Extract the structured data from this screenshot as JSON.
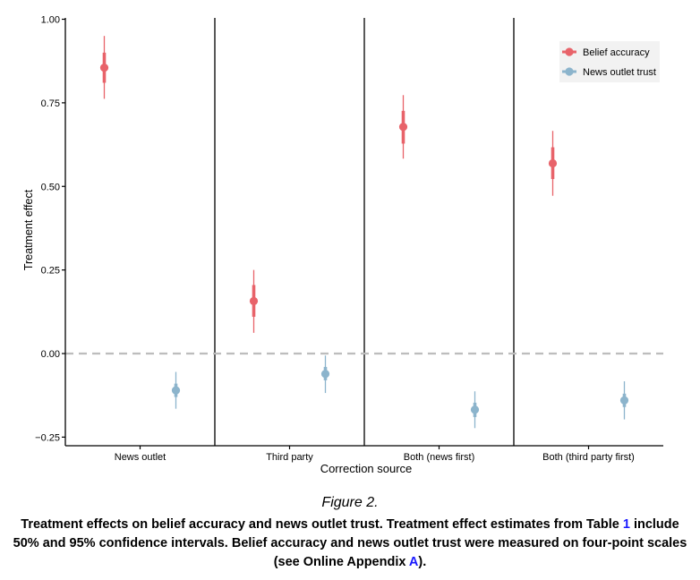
{
  "chart_data": {
    "type": "point-range",
    "xlabel": "Correction source",
    "ylabel": "Treatment effect",
    "ylim": [
      -0.27,
      1.0
    ],
    "yticks": [
      1.0,
      0.75,
      0.5,
      0.25,
      0.0,
      -0.25
    ],
    "ytick_labels": [
      "1.00",
      "0.75",
      "0.50",
      "0.25",
      "0.00",
      "−0.25"
    ],
    "reference_line": 0.0,
    "grid": false,
    "legend_position": "top-right",
    "categories": [
      "News outlet",
      "Third party",
      "Both (news first)",
      "Both (third party first)"
    ],
    "series": [
      {
        "name": "Belief accuracy",
        "color": "#e8636a",
        "estimate": [
          0.855,
          0.157,
          0.678,
          0.569
        ],
        "ci50": [
          [
            0.81,
            0.9
          ],
          [
            0.11,
            0.205
          ],
          [
            0.628,
            0.726
          ],
          [
            0.522,
            0.617
          ]
        ],
        "ci95": [
          [
            0.762,
            0.95
          ],
          [
            0.062,
            0.25
          ],
          [
            0.583,
            0.773
          ],
          [
            0.472,
            0.666
          ]
        ]
      },
      {
        "name": "News outlet trust",
        "color": "#8cb4cc",
        "estimate": [
          -0.11,
          -0.061,
          -0.168,
          -0.14
        ],
        "ci50": [
          [
            -0.13,
            -0.09
          ],
          [
            -0.08,
            -0.04
          ],
          [
            -0.19,
            -0.147
          ],
          [
            -0.16,
            -0.12
          ]
        ],
        "ci95": [
          [
            -0.165,
            -0.055
          ],
          [
            -0.118,
            -0.006
          ],
          [
            -0.223,
            -0.113
          ],
          [
            -0.197,
            -0.083
          ]
        ]
      }
    ]
  },
  "figure": {
    "label": "Figure 2.",
    "caption_part1": "Treatment effects on belief accuracy and news outlet trust. Treatment effect estimates from Table ",
    "table_ref": "1",
    "caption_part2": " include 50% and 95% confidence intervals. Belief accuracy and news outlet trust were measured on four-point scales (see Online Appendix ",
    "appendix_ref": "A",
    "caption_part3": ")."
  }
}
